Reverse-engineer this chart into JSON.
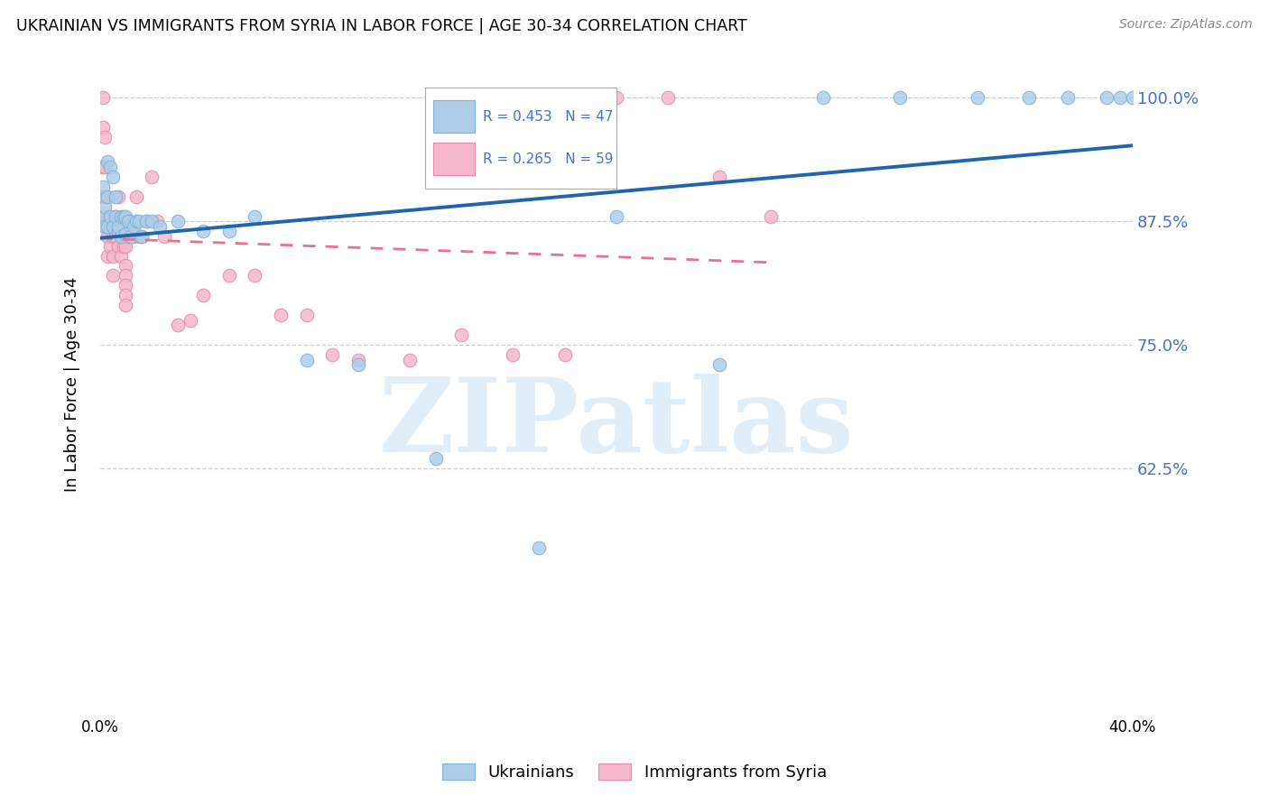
{
  "title": "UKRAINIAN VS IMMIGRANTS FROM SYRIA IN LABOR FORCE | AGE 30-34 CORRELATION CHART",
  "source": "Source: ZipAtlas.com",
  "ylabel": "In Labor Force | Age 30-34",
  "xlim": [
    0.0,
    0.4
  ],
  "ylim": [
    0.38,
    1.04
  ],
  "yticks": [
    0.625,
    0.75,
    0.875,
    1.0
  ],
  "ytick_labels": [
    "62.5%",
    "75.0%",
    "87.5%",
    "100.0%"
  ],
  "xtick_positions": [
    0.0,
    0.05,
    0.1,
    0.15,
    0.2,
    0.25,
    0.3,
    0.35,
    0.4
  ],
  "xtick_labels": [
    "0.0%",
    "",
    "",
    "",
    "",
    "",
    "",
    "",
    "40.0%"
  ],
  "legend_blue_r": "R = 0.453",
  "legend_blue_n": "N = 47",
  "legend_pink_r": "R = 0.265",
  "legend_pink_n": "N = 59",
  "blue_scatter_color": "#aecde8",
  "blue_edge_color": "#7ab3d8",
  "pink_scatter_color": "#f4b8ca",
  "pink_edge_color": "#e888a8",
  "blue_line_color": "#2166ac",
  "pink_line_color": "#e87090",
  "right_axis_color": "#4472c4",
  "watermark_text": "ZIPatlas",
  "blue_x": [
    0.001,
    0.001,
    0.002,
    0.002,
    0.003,
    0.003,
    0.003,
    0.004,
    0.004,
    0.005,
    0.005,
    0.006,
    0.006,
    0.007,
    0.007,
    0.008,
    0.008,
    0.009,
    0.01,
    0.01,
    0.011,
    0.012,
    0.013,
    0.014,
    0.015,
    0.016,
    0.018,
    0.02,
    0.023,
    0.03,
    0.04,
    0.05,
    0.06,
    0.08,
    0.1,
    0.13,
    0.17,
    0.2,
    0.24,
    0.28,
    0.31,
    0.34,
    0.36,
    0.375,
    0.39,
    0.395,
    0.4
  ],
  "blue_y": [
    0.88,
    0.91,
    0.89,
    0.87,
    0.935,
    0.87,
    0.9,
    0.88,
    0.93,
    0.92,
    0.87,
    0.9,
    0.88,
    0.865,
    0.87,
    0.86,
    0.88,
    0.88,
    0.862,
    0.88,
    0.875,
    0.86,
    0.87,
    0.875,
    0.875,
    0.86,
    0.875,
    0.875,
    0.87,
    0.875,
    0.865,
    0.865,
    0.88,
    0.735,
    0.73,
    0.635,
    0.545,
    0.88,
    0.73,
    1.0,
    1.0,
    1.0,
    1.0,
    1.0,
    1.0,
    1.0,
    1.0
  ],
  "pink_x": [
    0.001,
    0.001,
    0.001,
    0.001,
    0.002,
    0.002,
    0.002,
    0.002,
    0.003,
    0.003,
    0.003,
    0.004,
    0.004,
    0.005,
    0.005,
    0.005,
    0.006,
    0.006,
    0.007,
    0.007,
    0.007,
    0.008,
    0.008,
    0.009,
    0.009,
    0.01,
    0.01,
    0.011,
    0.012,
    0.013,
    0.014,
    0.015,
    0.016,
    0.018,
    0.02,
    0.022,
    0.025,
    0.03,
    0.035,
    0.04,
    0.05,
    0.06,
    0.07,
    0.08,
    0.09,
    0.1,
    0.12,
    0.14,
    0.16,
    0.18,
    0.2,
    0.22,
    0.24,
    0.26,
    0.01,
    0.01,
    0.01,
    0.01,
    0.01
  ],
  "pink_y": [
    1.0,
    0.97,
    0.93,
    0.9,
    0.96,
    0.93,
    0.9,
    0.87,
    0.88,
    0.86,
    0.84,
    0.87,
    0.85,
    0.86,
    0.84,
    0.82,
    0.88,
    0.86,
    0.9,
    0.87,
    0.85,
    0.87,
    0.84,
    0.87,
    0.85,
    0.87,
    0.85,
    0.86,
    0.87,
    0.86,
    0.9,
    0.86,
    0.86,
    0.875,
    0.92,
    0.875,
    0.86,
    0.77,
    0.775,
    0.8,
    0.82,
    0.82,
    0.78,
    0.78,
    0.74,
    0.735,
    0.735,
    0.76,
    0.74,
    0.74,
    1.0,
    1.0,
    0.92,
    0.88,
    0.83,
    0.82,
    0.81,
    0.8,
    0.79
  ]
}
